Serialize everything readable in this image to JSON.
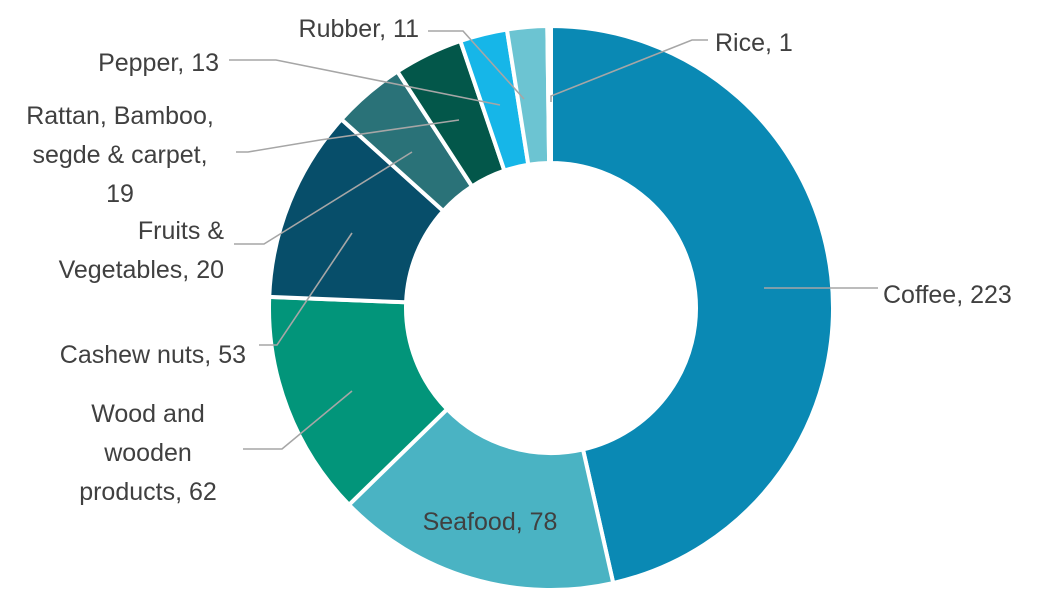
{
  "chart_data": {
    "type": "doughnut",
    "title": "",
    "categories": [
      "Coffee",
      "Seafood",
      "Wood and wooden products",
      "Cashew nuts",
      "Fruits & Vegetables",
      "Rattan, Bamboo, segde & carpet",
      "Pepper",
      "Rubber",
      "Rice"
    ],
    "values": [
      223,
      78,
      62,
      53,
      20,
      19,
      13,
      11,
      1
    ],
    "colors": [
      "#0a89b4",
      "#4ab3c3",
      "#02957a",
      "#074e6a",
      "#2a7278",
      "#03574a",
      "#16b6e8",
      "#6cc4d2",
      "#8a8a8a"
    ],
    "labels": [
      {
        "lines": [
          "Coffee,  223"
        ]
      },
      {
        "lines": [
          "Seafood,  78"
        ]
      },
      {
        "lines": [
          "Wood and",
          "wooden",
          "products,  62"
        ]
      },
      {
        "lines": [
          "Cashew nuts,  53"
        ]
      },
      {
        "lines": [
          "Fruits &",
          "Vegetables,  20"
        ]
      },
      {
        "lines": [
          "Rattan, Bamboo,",
          "segde & carpet,",
          "19"
        ]
      },
      {
        "lines": [
          "Pepper,  13"
        ]
      },
      {
        "lines": [
          "Rubber,  11"
        ]
      },
      {
        "lines": [
          "Rice,  1"
        ]
      }
    ],
    "legend": "none"
  }
}
